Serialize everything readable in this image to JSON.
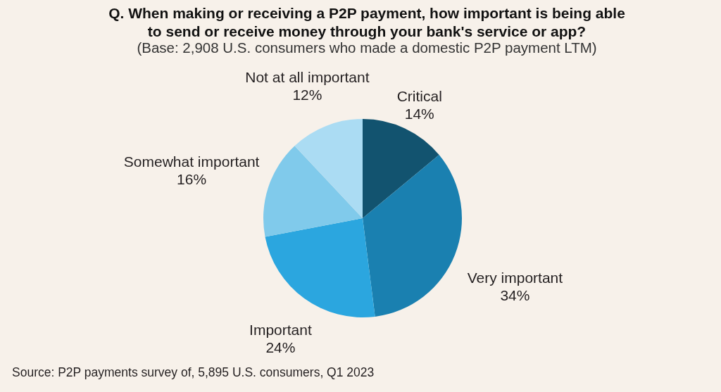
{
  "chart_data": {
    "type": "pie",
    "title": "Q. When making or receiving a P2P payment, how important is being able to send or receive money through your bank's service or app?",
    "subtitle": "(Base: 2,908 U.S. consumers who made a domestic P2P payment LTM)",
    "categories": [
      "Critical",
      "Very important",
      "Important",
      "Somewhat important",
      "Not at all important"
    ],
    "values": [
      14,
      34,
      24,
      16,
      12
    ],
    "value_labels": [
      "14%",
      "34%",
      "24%",
      "16%",
      "12%"
    ],
    "colors": [
      "#12536f",
      "#1a80b0",
      "#2ba6df",
      "#80caeb",
      "#abdcf3"
    ],
    "annotations": [
      "Source: P2P payments survey of, 5,895 U.S. consumers, Q1 2023"
    ]
  }
}
